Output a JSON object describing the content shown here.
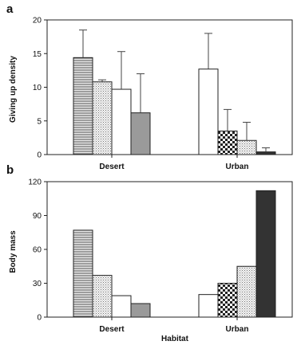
{
  "chart_data": [
    {
      "panel": "a",
      "type": "bar",
      "ylabel": "Giving up density",
      "ylim": [
        0,
        20
      ],
      "yticks": [
        0,
        5,
        10,
        15,
        20
      ],
      "groups": [
        {
          "name": "Desert",
          "bars": [
            {
              "value": 14.4,
              "error": 4.1,
              "fill": "hlines"
            },
            {
              "value": 10.8,
              "error": 0.3,
              "fill": "dots"
            },
            {
              "value": 9.7,
              "error": 5.6,
              "fill": "white"
            },
            {
              "value": 6.2,
              "error": 5.8,
              "fill": "grey"
            }
          ]
        },
        {
          "name": "Urban",
          "bars": [
            {
              "value": 12.7,
              "error": 5.3,
              "fill": "white"
            },
            {
              "value": 3.5,
              "error": 3.2,
              "fill": "checker"
            },
            {
              "value": 2.1,
              "error": 2.7,
              "fill": "dots"
            },
            {
              "value": 0.4,
              "error": 0.6,
              "fill": "black"
            }
          ]
        }
      ]
    },
    {
      "panel": "b",
      "type": "bar",
      "ylabel": "Body mass",
      "xlabel": "Habitat",
      "ylim": [
        0,
        120
      ],
      "yticks": [
        0,
        30,
        60,
        90,
        120
      ],
      "groups": [
        {
          "name": "Desert",
          "bars": [
            {
              "value": 77,
              "fill": "hlines"
            },
            {
              "value": 37,
              "fill": "dots"
            },
            {
              "value": 19,
              "fill": "white"
            },
            {
              "value": 12,
              "fill": "grey"
            }
          ]
        },
        {
          "name": "Urban",
          "bars": [
            {
              "value": 20,
              "fill": "white"
            },
            {
              "value": 30,
              "fill": "checker"
            },
            {
              "value": 45,
              "fill": "dots"
            },
            {
              "value": 112,
              "fill": "black"
            }
          ]
        }
      ]
    }
  ],
  "colors": {
    "axis": "#222222",
    "hatch": "#555555",
    "grey": "#9a9a9a",
    "black": "#333333"
  }
}
